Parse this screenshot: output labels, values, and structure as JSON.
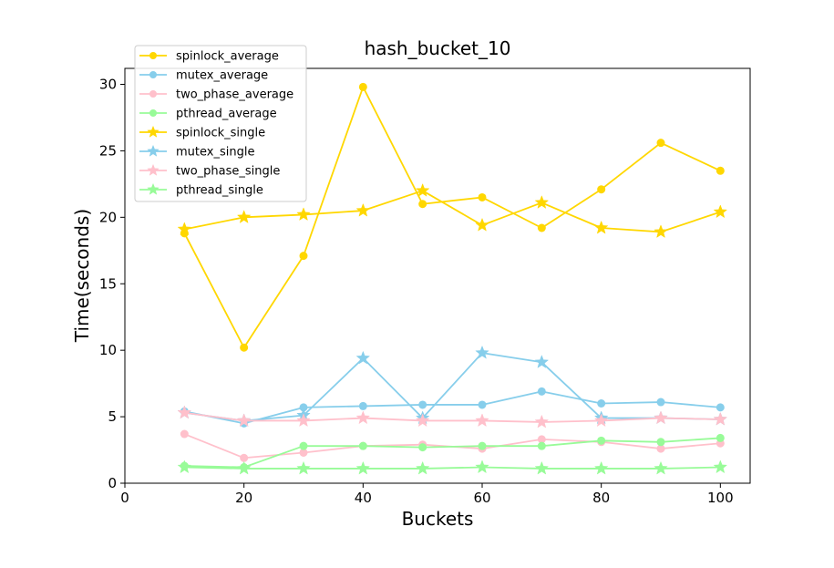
{
  "chart_data": {
    "type": "line",
    "title": "hash_bucket_10",
    "xlabel": "Buckets",
    "ylabel": "Time(seconds)",
    "xlim": [
      0,
      105
    ],
    "ylim": [
      0,
      31.2
    ],
    "x_ticks": [
      0,
      20,
      40,
      60,
      80,
      100
    ],
    "y_ticks": [
      0,
      5,
      10,
      15,
      20,
      25,
      30
    ],
    "x_tick_labels": [
      "0",
      "20",
      "40",
      "60",
      "80",
      "100"
    ],
    "y_tick_labels": [
      "0",
      "5",
      "10",
      "15",
      "20",
      "25",
      "30"
    ],
    "grid": false,
    "legend_position": "top-left",
    "x": [
      10,
      20,
      30,
      40,
      50,
      60,
      70,
      80,
      90,
      100
    ],
    "series": [
      {
        "name": "spinlock_average",
        "color": "#FFD700",
        "marker": "circle",
        "values": [
          18.8,
          10.2,
          17.1,
          29.8,
          21.0,
          21.5,
          19.2,
          22.1,
          25.6,
          23.5
        ]
      },
      {
        "name": "mutex_average",
        "color": "#87CEEB",
        "marker": "circle",
        "values": [
          5.4,
          4.5,
          5.7,
          5.8,
          5.9,
          5.9,
          6.9,
          6.0,
          6.1,
          5.7
        ]
      },
      {
        "name": "two_phase_average",
        "color": "#FFC0CB",
        "marker": "circle",
        "values": [
          3.7,
          1.9,
          2.3,
          2.8,
          2.9,
          2.6,
          3.3,
          3.1,
          2.6,
          3.0
        ]
      },
      {
        "name": "pthread_average",
        "color": "#98FB98",
        "marker": "circle",
        "values": [
          1.3,
          1.2,
          2.8,
          2.8,
          2.7,
          2.8,
          2.8,
          3.2,
          3.1,
          3.4
        ]
      },
      {
        "name": "spinlock_single",
        "color": "#FFD700",
        "marker": "star",
        "values": [
          19.1,
          20.0,
          20.2,
          20.5,
          22.0,
          19.4,
          21.1,
          19.2,
          18.9,
          20.4
        ]
      },
      {
        "name": "mutex_single",
        "color": "#87CEEB",
        "marker": "star",
        "values": [
          5.3,
          4.7,
          5.1,
          9.4,
          4.9,
          9.8,
          9.1,
          4.9,
          4.9,
          4.8
        ]
      },
      {
        "name": "two_phase_single",
        "color": "#FFC0CB",
        "marker": "star",
        "values": [
          5.3,
          4.7,
          4.7,
          4.9,
          4.7,
          4.7,
          4.6,
          4.7,
          4.9,
          4.8
        ]
      },
      {
        "name": "pthread_single",
        "color": "#98FB98",
        "marker": "star",
        "values": [
          1.2,
          1.1,
          1.1,
          1.1,
          1.1,
          1.2,
          1.1,
          1.1,
          1.1,
          1.2
        ]
      }
    ]
  }
}
